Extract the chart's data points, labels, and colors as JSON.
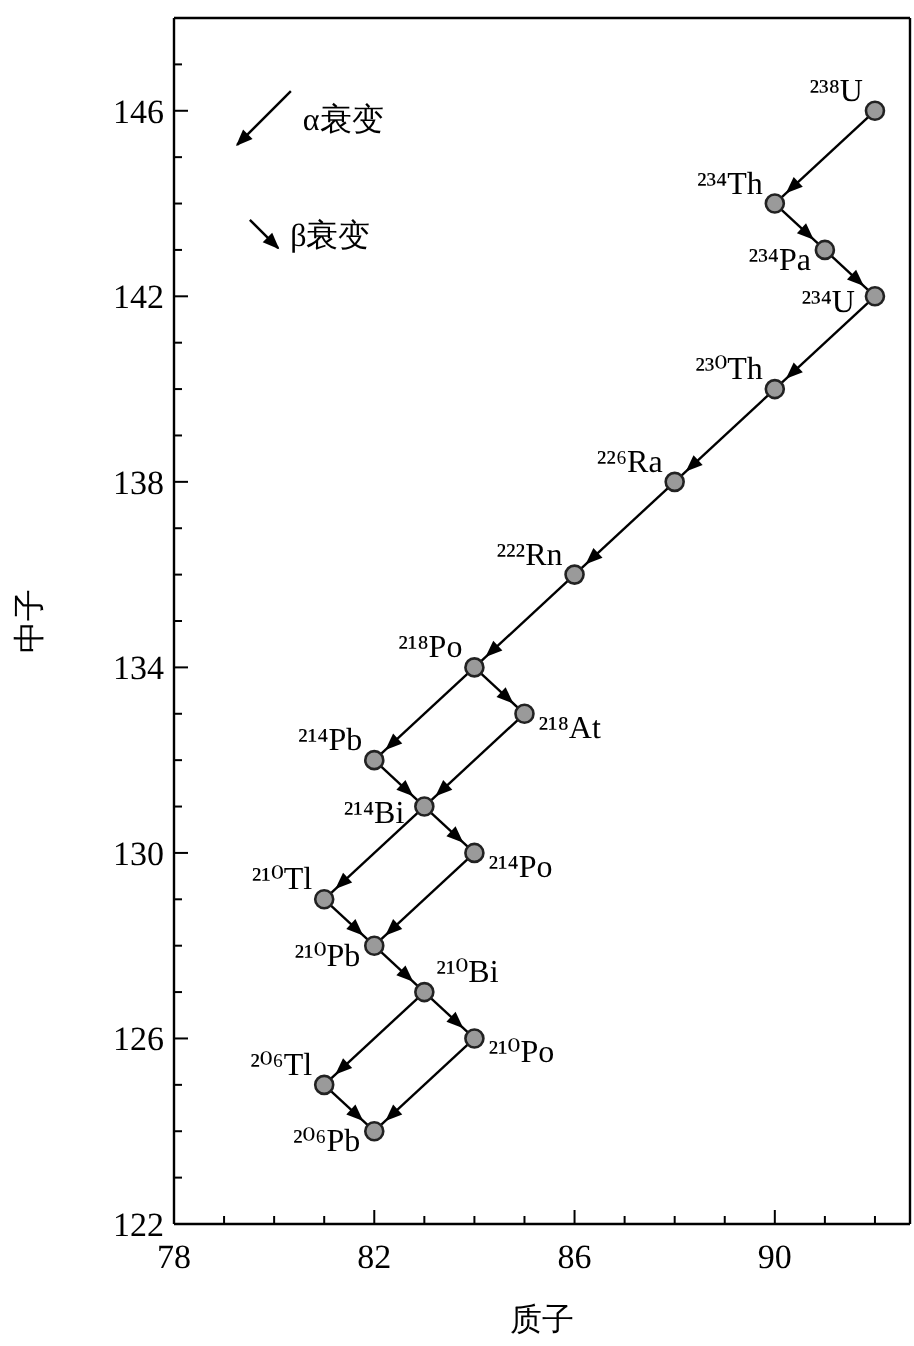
{
  "chart_data": {
    "type": "scatter",
    "xlabel": "质子",
    "ylabel": "中子",
    "xlim": [
      78,
      92.7
    ],
    "ylim": [
      122,
      148
    ],
    "xticks": [
      78,
      {
        "value": 79,
        "label": null
      },
      {
        "value": 80,
        "label": null
      },
      {
        "value": 81,
        "label": null
      },
      82,
      {
        "value": 83,
        "label": null
      },
      {
        "value": 84,
        "label": null
      },
      {
        "value": 85,
        "label": null
      },
      86,
      {
        "value": 87,
        "label": null
      },
      {
        "value": 88,
        "label": null
      },
      {
        "value": 89,
        "label": null
      },
      90,
      {
        "value": 91,
        "label": null
      },
      {
        "value": 92,
        "label": null
      }
    ],
    "yticks": [
      122,
      {
        "value": 123,
        "label": null
      },
      {
        "value": 124,
        "label": null
      },
      {
        "value": 125,
        "label": null
      },
      126,
      {
        "value": 127,
        "label": null
      },
      {
        "value": 128,
        "label": null
      },
      {
        "value": 129,
        "label": null
      },
      130,
      {
        "value": 131,
        "label": null
      },
      {
        "value": 132,
        "label": null
      },
      {
        "value": 133,
        "label": null
      },
      134,
      {
        "value": 135,
        "label": null
      },
      {
        "value": 136,
        "label": null
      },
      {
        "value": 137,
        "label": null
      },
      138,
      {
        "value": 139,
        "label": null
      },
      {
        "value": 140,
        "label": null
      },
      {
        "value": 141,
        "label": null
      },
      142,
      {
        "value": 143,
        "label": null
      },
      {
        "value": 144,
        "label": null
      },
      {
        "value": 145,
        "label": null
      },
      146,
      {
        "value": 147,
        "label": null
      }
    ],
    "legend": "top left",
    "grid": false,
    "series": [
      {
        "type": "scatter",
        "color": "#9a9a9a",
        "marker": "circle",
        "x": [
          92,
          90,
          91,
          92,
          90,
          88,
          86,
          84,
          85,
          82,
          83,
          84,
          81,
          82,
          83,
          84,
          81,
          82
        ],
        "values": [
          146,
          144,
          143,
          142,
          140,
          138,
          136,
          134,
          133,
          132,
          131,
          130,
          129,
          128,
          127,
          126,
          125,
          124
        ]
      },
      {
        "type": "line",
        "name": "α衰变",
        "color": "#000000",
        "marker": "none",
        "line_style": "solid",
        "x": [
          92,
          90
        ],
        "values": [
          146,
          144
        ]
      },
      {
        "type": "line",
        "color": "#000000",
        "marker": "none",
        "line_style": "solid",
        "x": [
          92,
          90
        ],
        "values": [
          142,
          140
        ]
      },
      {
        "type": "line",
        "color": "#000000",
        "marker": "none",
        "line_style": "solid",
        "x": [
          90,
          88
        ],
        "values": [
          140,
          138
        ]
      },
      {
        "type": "line",
        "color": "#000000",
        "marker": "none",
        "line_style": "solid",
        "x": [
          88,
          86
        ],
        "values": [
          138,
          136
        ]
      },
      {
        "type": "line",
        "color": "#000000",
        "marker": "none",
        "line_style": "solid",
        "x": [
          86,
          84
        ],
        "values": [
          136,
          134
        ]
      },
      {
        "type": "line",
        "color": "#000000",
        "marker": "none",
        "line_style": "solid",
        "x": [
          84,
          82
        ],
        "values": [
          134,
          132
        ]
      },
      {
        "type": "line",
        "color": "#000000",
        "marker": "none",
        "line_style": "solid",
        "x": [
          85,
          83
        ],
        "values": [
          133,
          131
        ]
      },
      {
        "type": "line",
        "color": "#000000",
        "marker": "none",
        "line_style": "solid",
        "x": [
          83,
          81
        ],
        "values": [
          131,
          129
        ]
      },
      {
        "type": "line",
        "color": "#000000",
        "marker": "none",
        "line_style": "solid",
        "x": [
          84,
          82
        ],
        "values": [
          130,
          128
        ]
      },
      {
        "type": "line",
        "color": "#000000",
        "marker": "none",
        "line_style": "solid",
        "x": [
          83,
          81
        ],
        "values": [
          127,
          125
        ]
      },
      {
        "type": "line",
        "color": "#000000",
        "marker": "none",
        "line_style": "solid",
        "x": [
          84,
          82
        ],
        "values": [
          126,
          124
        ]
      },
      {
        "type": "line",
        "name": "β衰变",
        "color": "#000000",
        "marker": "none",
        "line_style": "solid",
        "x": [
          90,
          91
        ],
        "values": [
          144,
          143
        ]
      },
      {
        "type": "line",
        "color": "#000000",
        "marker": "none",
        "line_style": "solid",
        "x": [
          91,
          92
        ],
        "values": [
          143,
          142
        ]
      },
      {
        "type": "line",
        "color": "#000000",
        "marker": "none",
        "line_style": "solid",
        "x": [
          84,
          85
        ],
        "values": [
          134,
          133
        ]
      },
      {
        "type": "line",
        "color": "#000000",
        "marker": "none",
        "line_style": "solid",
        "x": [
          82,
          83
        ],
        "values": [
          132,
          131
        ]
      },
      {
        "type": "line",
        "color": "#000000",
        "marker": "none",
        "line_style": "solid",
        "x": [
          83,
          84
        ],
        "values": [
          131,
          130
        ]
      },
      {
        "type": "line",
        "color": "#000000",
        "marker": "none",
        "line_style": "solid",
        "x": [
          81,
          82
        ],
        "values": [
          129,
          128
        ]
      },
      {
        "type": "line",
        "color": "#000000",
        "marker": "none",
        "line_style": "solid",
        "x": [
          82,
          83
        ],
        "values": [
          128,
          127
        ]
      },
      {
        "type": "line",
        "color": "#000000",
        "marker": "none",
        "line_style": "solid",
        "x": [
          83,
          84
        ],
        "values": [
          127,
          126
        ]
      },
      {
        "type": "line",
        "color": "#000000",
        "marker": "none",
        "line_style": "solid",
        "x": [
          81,
          82
        ],
        "values": [
          125,
          124
        ]
      }
    ],
    "annotations": [
      {
        "text": "²³⁸U",
        "x": 92,
        "y": 146
      },
      {
        "text": "²³⁴Th",
        "x": 90,
        "y": 144
      },
      {
        "text": "²³⁴Pa",
        "x": 91,
        "y": 143
      },
      {
        "text": "²³⁴U",
        "x": 92,
        "y": 142
      },
      {
        "text": "²³⁰Th",
        "x": 90,
        "y": 140
      },
      {
        "text": "²²⁶Ra",
        "x": 88,
        "y": 138
      },
      {
        "text": "²²²Rn",
        "x": 86,
        "y": 136
      },
      {
        "text": "²¹⁸Po",
        "x": 84,
        "y": 134
      },
      {
        "text": "²¹⁸At",
        "x": 85,
        "y": 133
      },
      {
        "text": "²¹⁴Pb",
        "x": 82,
        "y": 132
      },
      {
        "text": "²¹⁴Bi",
        "x": 83,
        "y": 131
      },
      {
        "text": "²¹⁴Po",
        "x": 84,
        "y": 130
      },
      {
        "text": "²¹⁰Tl",
        "x": 81,
        "y": 129
      },
      {
        "text": "²¹⁰Pb",
        "x": 82,
        "y": 128
      },
      {
        "text": "²¹⁰Bi",
        "x": 83,
        "y": 127
      },
      {
        "text": "²¹⁰Po",
        "x": 84,
        "y": 126
      },
      {
        "text": "²⁰⁶Tl",
        "x": 81,
        "y": 125
      },
      {
        "text": "²⁰⁶Pb",
        "x": 82,
        "y": 124
      }
    ]
  }
}
